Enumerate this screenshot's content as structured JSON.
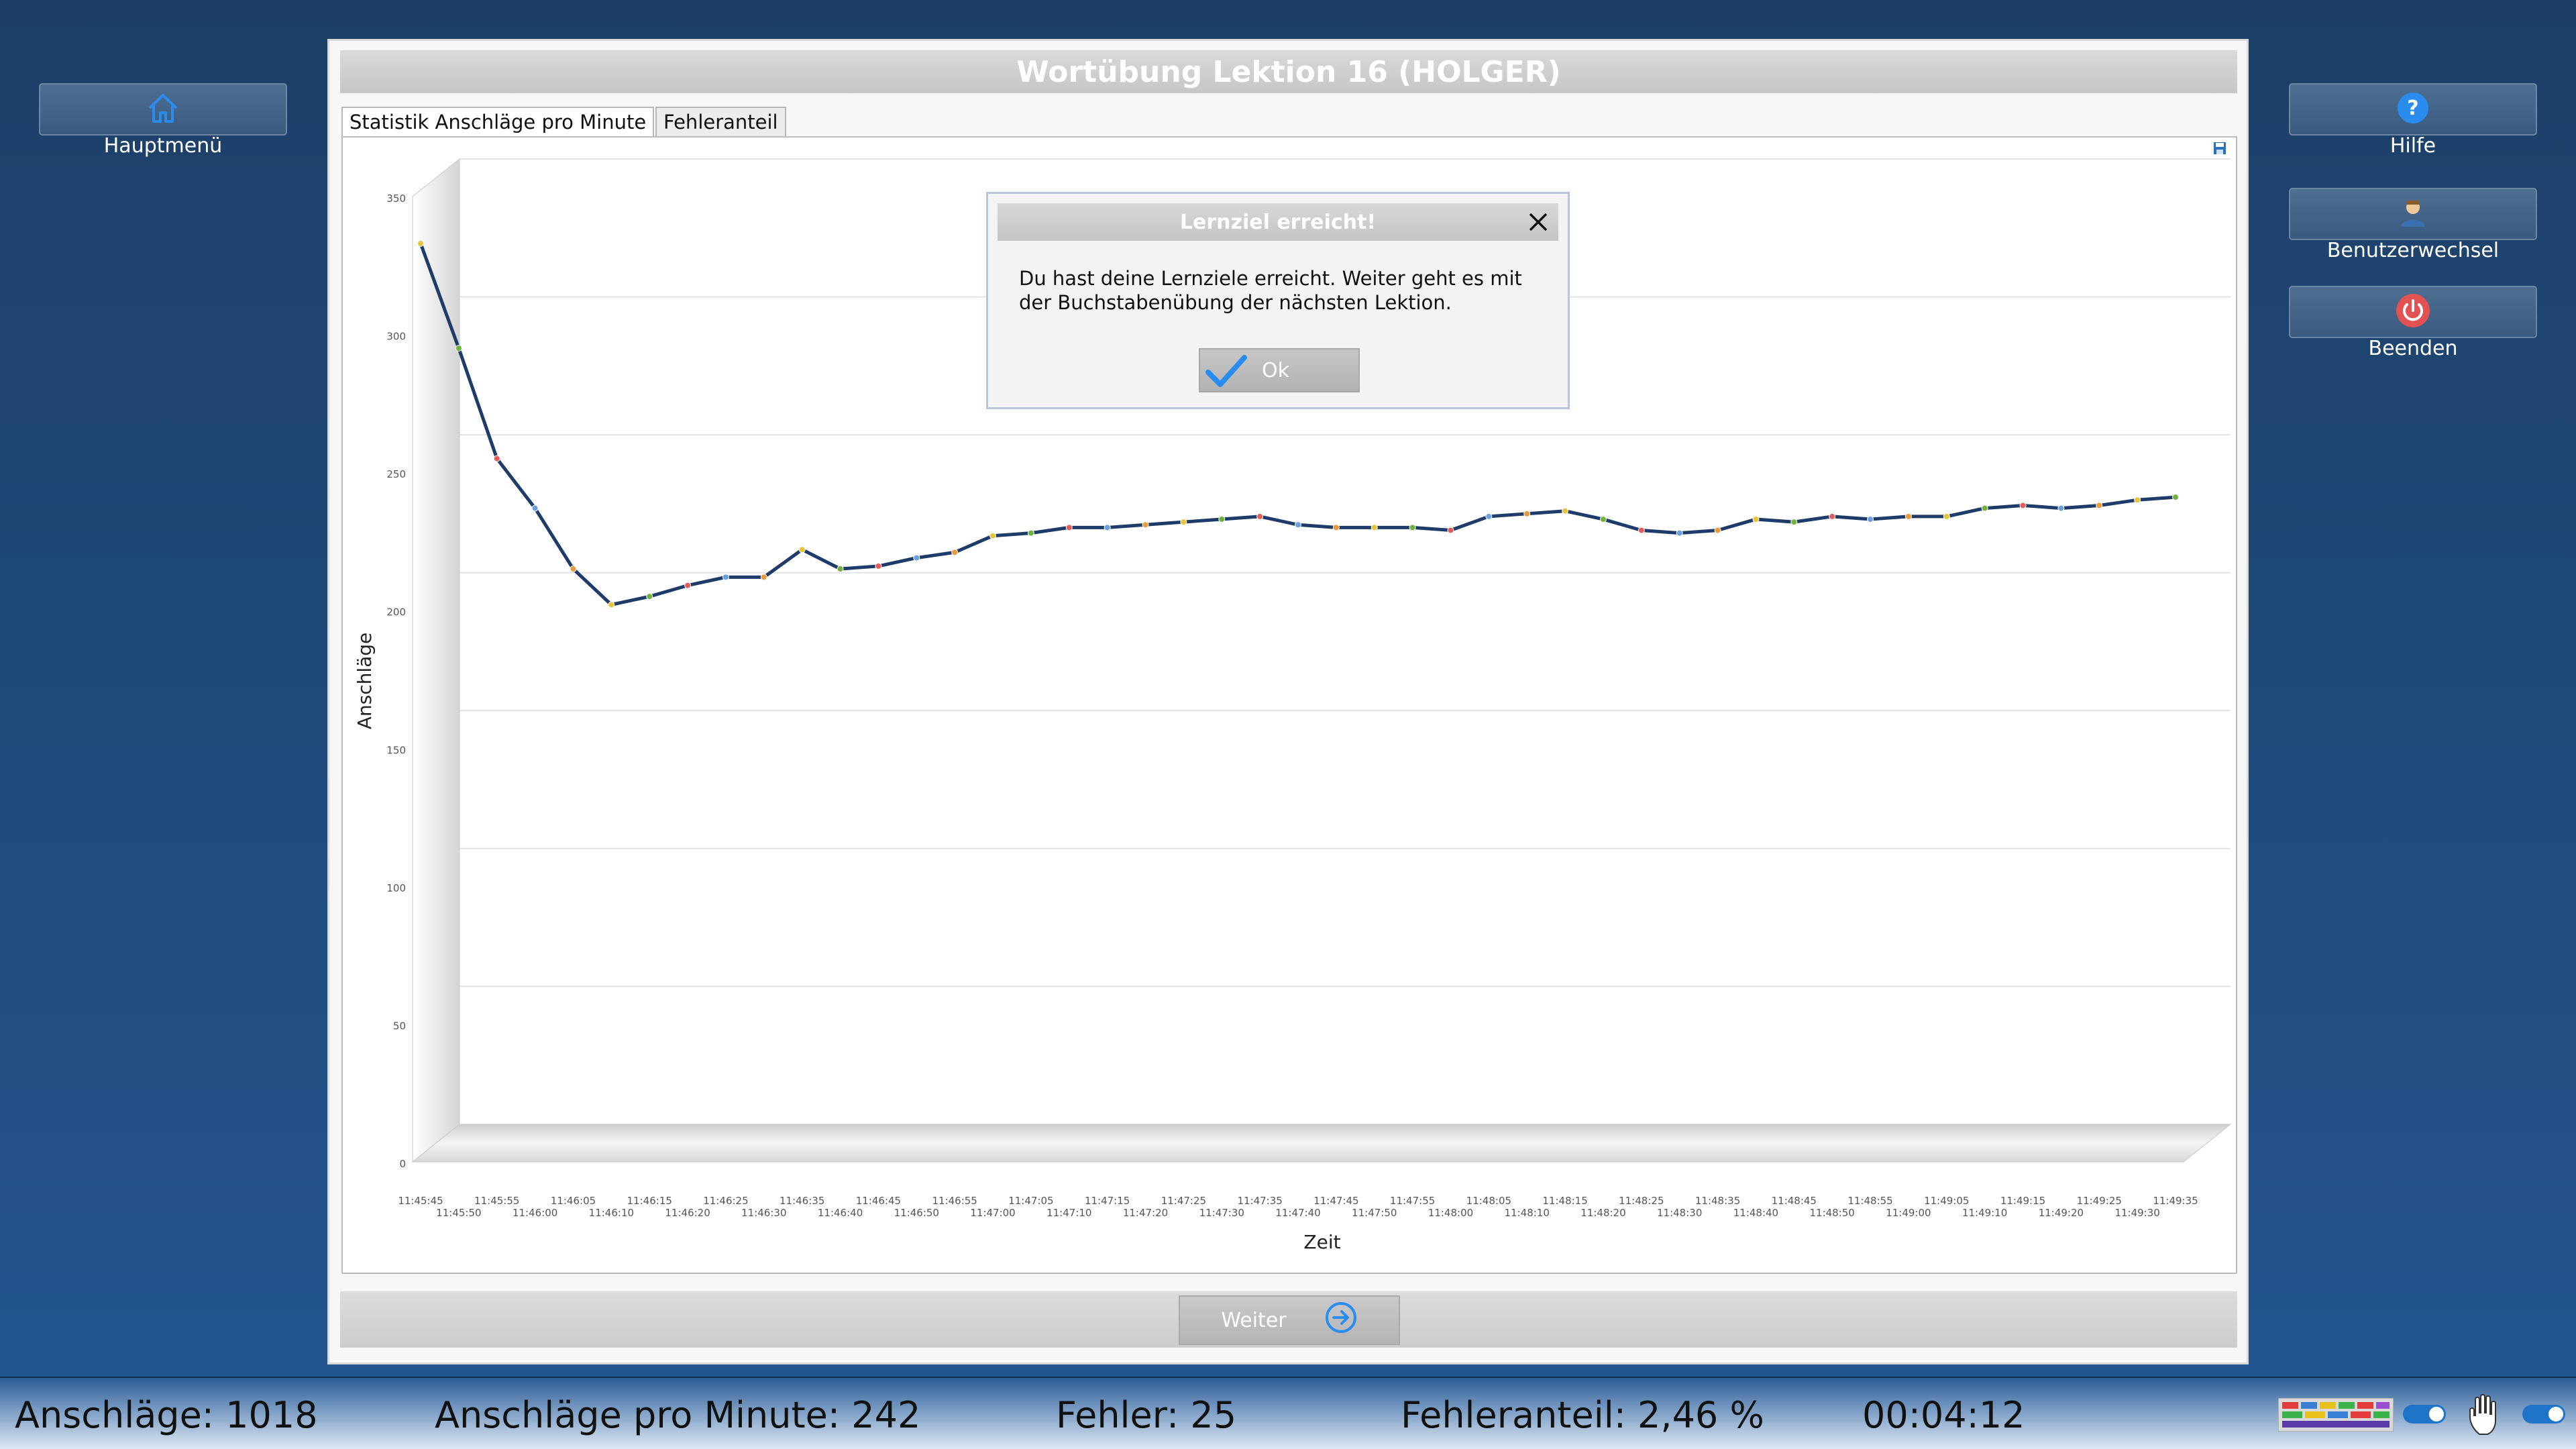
{
  "sidebar_left": {
    "home_label": "Hauptmenü"
  },
  "sidebar_right": {
    "help_label": "Hilfe",
    "switch_user_label": "Benutzerwechsel",
    "quit_label": "Beenden"
  },
  "window": {
    "title": "Wortübung Lektion 16 (HOLGER)"
  },
  "tabs": [
    {
      "label": "Statistik Anschläge pro Minute",
      "active": true
    },
    {
      "label": "Fehleranteil",
      "active": false
    }
  ],
  "dialog": {
    "title": "Lernziel erreicht!",
    "line1": "Du hast deine Lernziele erreicht. Weiter geht es mit",
    "line2": "der Buchstabenübung der nächsten Lektion.",
    "ok_label": "Ok"
  },
  "bottom": {
    "weiter_label": "Weiter"
  },
  "status": {
    "keystrokes": "Anschläge: 1018",
    "kpm": "Anschläge pro Minute: 242",
    "errors": "Fehler: 25",
    "error_rate": "Fehleranteil: 2,46 %",
    "time": "00:04:12"
  },
  "icons": {
    "home": "home-icon",
    "help": "help-icon",
    "user": "user-icon",
    "power": "power-icon",
    "close": "close-icon",
    "check": "check-icon",
    "arrow": "arrow-right-circle-icon",
    "save": "save-icon",
    "keyboard": "keyboard-icon",
    "hand": "hand-icon"
  },
  "colors": {
    "accent": "#1f74c9",
    "line": "#1f3b6a",
    "power": "#e35252"
  },
  "chart_data": {
    "type": "line",
    "xlabel": "Zeit",
    "ylabel": "Anschläge",
    "ylim": [
      0,
      350
    ],
    "yticks": [
      0,
      50,
      100,
      150,
      200,
      250,
      300,
      350
    ],
    "grid": true,
    "x": [
      "11:45:45",
      "11:45:50",
      "11:45:55",
      "11:46:00",
      "11:46:05",
      "11:46:10",
      "11:46:15",
      "11:46:20",
      "11:46:25",
      "11:46:30",
      "11:46:35",
      "11:46:40",
      "11:46:45",
      "11:46:50",
      "11:46:55",
      "11:47:00",
      "11:47:05",
      "11:47:10",
      "11:47:15",
      "11:47:20",
      "11:47:25",
      "11:47:30",
      "11:47:35",
      "11:47:40",
      "11:47:45",
      "11:47:50",
      "11:47:55",
      "11:48:00",
      "11:48:05",
      "11:48:10",
      "11:48:15",
      "11:48:20",
      "11:48:25",
      "11:48:30",
      "11:48:35",
      "11:48:40",
      "11:48:45",
      "11:48:50",
      "11:48:55",
      "11:49:00",
      "11:49:05",
      "11:49:10",
      "11:49:15",
      "11:49:20",
      "11:49:25",
      "11:49:30",
      "11:49:35"
    ],
    "values": [
      333,
      295,
      255,
      237,
      215,
      202,
      205,
      209,
      212,
      212,
      222,
      215,
      216,
      219,
      221,
      227,
      228,
      230,
      230,
      231,
      232,
      233,
      234,
      231,
      230,
      230,
      230,
      229,
      234,
      235,
      236,
      233,
      229,
      228,
      229,
      233,
      232,
      234,
      233,
      234,
      234,
      237,
      238,
      237,
      238,
      240,
      241
    ]
  }
}
